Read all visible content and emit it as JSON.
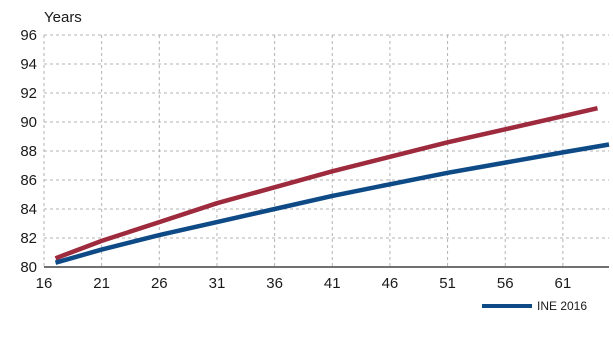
{
  "chart_data": {
    "type": "line",
    "ylabel": "Years",
    "xlim": [
      16,
      65
    ],
    "ylim": [
      80,
      96
    ],
    "x_ticks": [
      16,
      21,
      26,
      31,
      36,
      41,
      46,
      51,
      56,
      61
    ],
    "y_ticks": [
      80,
      82,
      84,
      86,
      88,
      90,
      92,
      94,
      96
    ],
    "grid": true,
    "legend_position": "bottom-right",
    "series": [
      {
        "color": "#9e2a3e",
        "x": [
          17,
          21,
          26,
          31,
          36,
          41,
          46,
          51,
          56,
          61,
          64
        ],
        "y": [
          80.6,
          81.8,
          83.1,
          84.4,
          85.5,
          86.6,
          87.6,
          88.6,
          89.5,
          90.4,
          90.95
        ]
      },
      {
        "name": "INE 2016",
        "color": "#0d4a86",
        "x": [
          17,
          21,
          26,
          31,
          36,
          41,
          46,
          51,
          56,
          61,
          65
        ],
        "y": [
          80.3,
          81.2,
          82.2,
          83.1,
          84.0,
          84.9,
          85.7,
          86.5,
          87.2,
          87.9,
          88.45
        ]
      }
    ]
  }
}
